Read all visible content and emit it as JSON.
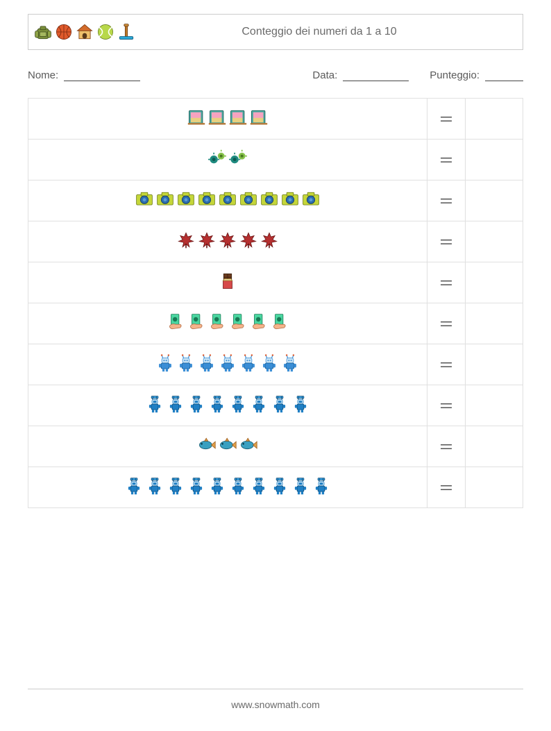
{
  "header": {
    "title": "Conteggio dei numeri da 1 a 10",
    "icons": [
      "backpack",
      "basketball",
      "doghouse",
      "tennis-ball",
      "skate"
    ]
  },
  "info": {
    "name_label": "Nome:",
    "date_label": "Data:",
    "score_label": "Punteggio:"
  },
  "equals_symbol": "＝",
  "rows": [
    {
      "icon": "photo-frame",
      "count": 4
    },
    {
      "icon": "virus-pair",
      "count": 2
    },
    {
      "icon": "camera",
      "count": 9
    },
    {
      "icon": "maple-leaf",
      "count": 5
    },
    {
      "icon": "chocolate",
      "count": 1
    },
    {
      "icon": "money-hand",
      "count": 6
    },
    {
      "icon": "robot-antenna",
      "count": 7
    },
    {
      "icon": "diver",
      "count": 8
    },
    {
      "icon": "fish",
      "count": 3
    },
    {
      "icon": "diver",
      "count": 10
    }
  ],
  "footer": "www.snowmath.com",
  "colors": {
    "border": "#cccccc",
    "row_border": "#e0e0e0",
    "text": "#5a5a5a",
    "backpack": "#7b8e3b",
    "basketball": "#e05a2b",
    "doghouse_roof": "#d36b2b",
    "doghouse_wall": "#efc06a",
    "tennis": "#b8d84a",
    "skate_post": "#c07a2a",
    "skate_base": "#2aa7d6",
    "frame_border": "#4aa8a0",
    "frame_inner": "#f5a3c0",
    "virus_a": "#1f8b80",
    "virus_b": "#86c24a",
    "camera_body": "#c4d63a",
    "camera_lens": "#2a6db0",
    "leaf": "#b53030",
    "choco_dark": "#6b3b1f",
    "choco_wrap": "#d64a4a",
    "money": "#4ad6a0",
    "hand": "#f5b38a",
    "robot_body": "#3a8ed6",
    "robot_head": "#cfe8f7",
    "diver_body": "#1f7fc4",
    "diver_tank": "#3aa0e0",
    "fish_body": "#3aa0c0",
    "fish_fin": "#e0a04a"
  }
}
